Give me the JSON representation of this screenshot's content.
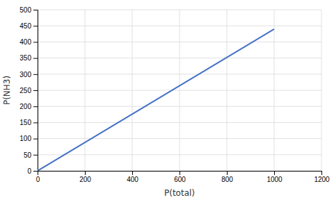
{
  "chart_data": {
    "type": "line",
    "xlabel": "P(total)",
    "ylabel": "P(NH3)",
    "x": [
      0,
      1000
    ],
    "values": [
      0,
      440
    ],
    "color": "#4472c4",
    "xlim": [
      0,
      1200
    ],
    "ylim": [
      0,
      500
    ],
    "xticks": [
      0,
      200,
      400,
      600,
      800,
      1000,
      1200
    ],
    "yticks": [
      0,
      50,
      100,
      150,
      200,
      250,
      300,
      350,
      400,
      450,
      500
    ],
    "grid": true
  }
}
